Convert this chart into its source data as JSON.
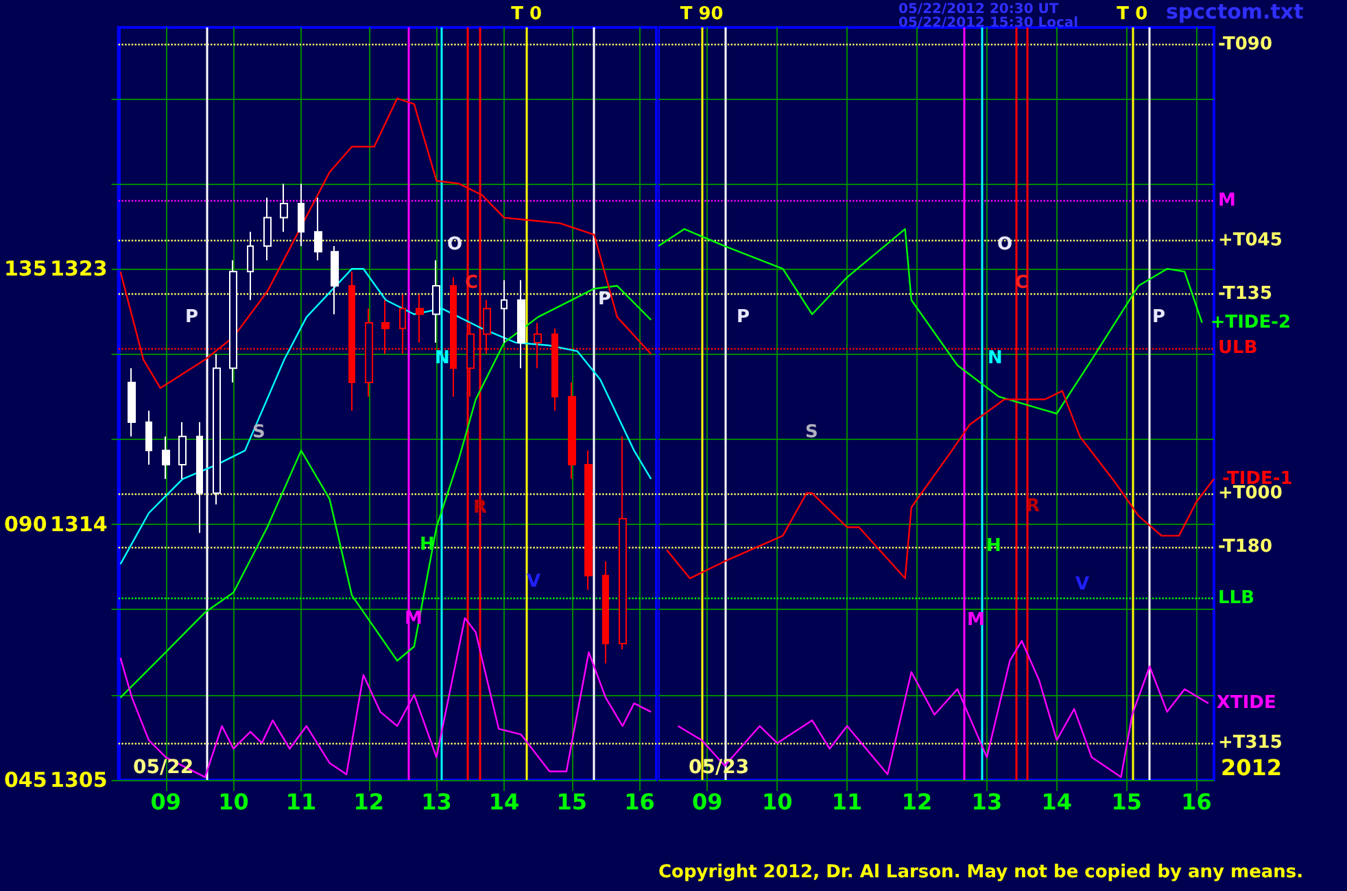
{
  "chart_data": [
    {
      "type": "candlestick",
      "xlim": [
        8.3,
        16.25
      ],
      "xticks": [
        {
          "value": 9,
          "label": "09"
        },
        {
          "value": 10,
          "label": "10"
        },
        {
          "value": 11,
          "label": "11"
        },
        {
          "value": 12,
          "label": "12"
        },
        {
          "value": 13,
          "label": "13"
        },
        {
          "value": 14,
          "label": "14"
        },
        {
          "value": 15,
          "label": "15"
        },
        {
          "value": 16,
          "label": "16"
        }
      ],
      "ylim": [
        1305,
        1331.5
      ],
      "yticks": [
        1305,
        {
          "value": 1308,
          "label": null
        },
        {
          "value": 1311,
          "label": null
        },
        1314,
        {
          "value": 1317,
          "label": null
        },
        {
          "value": 1320,
          "label": null
        },
        1323,
        {
          "value": 1326,
          "label": null
        },
        {
          "value": 1329,
          "label": null
        }
      ],
      "y2lim": [
        45,
        177.5
      ],
      "y2ticks": [
        {
          "value": 45,
          "label": "045"
        },
        {
          "value": 90,
          "label": "090"
        },
        {
          "value": 135,
          "label": "135"
        }
      ],
      "grid": true,
      "marker": "none",
      "series": [
        {
          "x": [
            8.5,
            8.75,
            9,
            9.25,
            9.5,
            9.75,
            10,
            10.25,
            10.5,
            10.75,
            11,
            11.25,
            11.5,
            11.75,
            12,
            12.25,
            12.5,
            12.75,
            13,
            13.25,
            13.5,
            13.75,
            14,
            14.25,
            14.5,
            14.75,
            15,
            15.25,
            15.5,
            15.75
          ],
          "ohlc": [
            [
              1319.0,
              1319.5,
              1317.1,
              1317.6
            ],
            [
              1317.6,
              1318.0,
              1316.1,
              1316.6
            ],
            [
              1316.6,
              1317.1,
              1315.6,
              1316.1
            ],
            [
              1316.1,
              1317.6,
              1315.6,
              1317.1
            ],
            [
              1317.1,
              1317.6,
              1313.7,
              1315.1
            ],
            [
              1315.1,
              1320.0,
              1314.7,
              1319.5
            ],
            [
              1319.5,
              1323.3,
              1319.0,
              1322.9
            ],
            [
              1322.9,
              1324.3,
              1321.9,
              1323.8
            ],
            [
              1323.8,
              1325.5,
              1323.3,
              1324.8
            ],
            [
              1324.8,
              1326.0,
              1324.3,
              1325.3
            ],
            [
              1325.3,
              1326.0,
              1323.8,
              1324.3
            ],
            [
              1324.3,
              1325.5,
              1323.3,
              1323.6
            ],
            [
              1323.6,
              1323.8,
              1321.4,
              1322.4
            ],
            [
              1322.4,
              1322.9,
              1318.0,
              1319.0
            ],
            [
              1319.0,
              1321.6,
              1318.5,
              1321.1
            ],
            [
              1321.1,
              1321.9,
              1320.0,
              1320.9
            ],
            [
              1320.9,
              1322.1,
              1320.0,
              1321.6
            ],
            [
              1321.6,
              1322.1,
              1320.4,
              1321.4
            ],
            [
              1321.4,
              1323.3,
              1320.4,
              1322.4
            ],
            [
              1322.4,
              1322.7,
              1318.5,
              1319.5
            ],
            [
              1319.5,
              1321.1,
              1318.5,
              1320.7
            ],
            [
              1320.7,
              1321.9,
              1320.0,
              1321.6
            ],
            [
              1321.6,
              1322.6,
              1320.4,
              1321.9
            ],
            [
              1321.9,
              1322.6,
              1319.5,
              1320.4
            ],
            [
              1320.4,
              1321.1,
              1319.5,
              1320.7
            ],
            [
              1320.7,
              1320.9,
              1318.0,
              1318.5
            ],
            [
              1318.5,
              1319.0,
              1315.6,
              1316.1
            ],
            [
              1316.1,
              1316.6,
              1311.7,
              1312.2
            ],
            [
              1312.2,
              1312.7,
              1309.1,
              1309.8
            ],
            [
              1309.8,
              1317.1,
              1309.6,
              1314.2
            ]
          ],
          "colors": [
            "#ffffff",
            "#ffffff",
            "#ffffff",
            "#ffffff",
            "#ffffff",
            "#ffffff",
            "#ffffff",
            "#ffffff",
            "#ffffff",
            "#ffffff",
            "#ffffff",
            "#ffffff",
            "#ffffff",
            "#ff0000",
            "#ff0000",
            "#ff0000",
            "#ff0000",
            "#ff0000",
            "#ffffff",
            "#ff0000",
            "#ff0000",
            "#ff0000",
            "#ffffff",
            "#ffffff",
            "#ff0000",
            "#ff0000",
            "#ff0000",
            "#ff0000",
            "#ff0000",
            "#ff0000"
          ]
        },
        {
          "type": "line",
          "color": "#00ffff",
          "x": [
            8.33,
            8.75,
            9.25,
            9.75,
            10.17,
            10.75,
            11.08,
            11.75,
            11.92,
            12.25,
            12.67,
            13.08,
            13.67,
            14.17,
            14.67,
            15.08,
            15.42,
            15.92,
            16.17
          ],
          "values": [
            1312.6,
            1314.4,
            1315.6,
            1316.1,
            1316.6,
            1319.8,
            1321.3,
            1323.0,
            1323.0,
            1321.9,
            1321.4,
            1321.6,
            1320.9,
            1320.4,
            1320.3,
            1320.1,
            1319.1,
            1316.6,
            1315.6
          ]
        },
        {
          "type": "line",
          "color": "#00ff00",
          "x": [
            8.33,
            9,
            9.58,
            10,
            10.5,
            11,
            11.42,
            11.75,
            12.42,
            12.67,
            13,
            13.33,
            13.58,
            14,
            14.5,
            15.33,
            15.67,
            16.17
          ],
          "values": [
            1307.9,
            1309.5,
            1310.9,
            1311.6,
            1313.9,
            1316.6,
            1314.9,
            1311.5,
            1309.2,
            1309.7,
            1313.9,
            1316.3,
            1318.4,
            1320.4,
            1321.3,
            1322.3,
            1322.4,
            1321.2
          ]
        },
        {
          "type": "line",
          "color": "#ff0000",
          "x": [
            8.33,
            8.67,
            8.92,
            9.58,
            10,
            10.5,
            11.42,
            11.75,
            12.08,
            12.42,
            12.67,
            13,
            13.33,
            13.67,
            14,
            14.83,
            15.33,
            15.67,
            16.17
          ],
          "values": [
            1322.9,
            1319.8,
            1318.8,
            1319.8,
            1320.6,
            1322.2,
            1326.4,
            1327.3,
            1327.3,
            1329.0,
            1328.8,
            1326.1,
            1326.0,
            1325.6,
            1324.8,
            1324.6,
            1324.2,
            1321.3,
            1320.0
          ]
        },
        {
          "type": "line",
          "color": "#ff00ff",
          "x": [
            8.33,
            8.5,
            8.75,
            9,
            9.58,
            9.83,
            10,
            10.25,
            10.42,
            10.58,
            10.83,
            11.08,
            11.42,
            11.67,
            11.92,
            12.17,
            12.42,
            12.67,
            13,
            13.42,
            13.58,
            13.92,
            14.25,
            14.67,
            14.92,
            15.25,
            15.5,
            15.75,
            15.92,
            16.17
          ],
          "values": [
            1309.3,
            1307.9,
            1306.4,
            1305.8,
            1305.1,
            1306.9,
            1306.1,
            1306.7,
            1306.3,
            1307.1,
            1306.1,
            1306.9,
            1305.6,
            1305.2,
            1308.7,
            1307.4,
            1306.9,
            1308.0,
            1305.8,
            1310.7,
            1310.2,
            1306.8,
            1306.6,
            1305.3,
            1305.3,
            1309.5,
            1307.9,
            1306.9,
            1307.7,
            1307.4
          ]
        }
      ],
      "ref_lines": [
        {
          "axis": "y",
          "value": 1330.9,
          "color": "#ffff66",
          "line_style": "dotted"
        },
        {
          "axis": "y",
          "value": 1325.4,
          "color": "#ff00ff",
          "line_style": "dotted"
        },
        {
          "axis": "y",
          "value": 1324.0,
          "color": "#ffff66",
          "line_style": "dotted"
        },
        {
          "axis": "y",
          "value": 1322.1,
          "color": "#ffff66",
          "line_style": "dotted"
        },
        {
          "axis": "y",
          "value": 1320.2,
          "color": "#ff0000",
          "line_style": "dotted"
        },
        {
          "axis": "y",
          "value": 1315.1,
          "color": "#ffff66",
          "line_style": "dotted"
        },
        {
          "axis": "y",
          "value": 1313.2,
          "color": "#ffff66",
          "line_style": "dotted"
        },
        {
          "axis": "y",
          "value": 1311.4,
          "color": "#00ff00",
          "line_style": "dotted"
        },
        {
          "axis": "y",
          "value": 1306.3,
          "color": "#ffff66",
          "line_style": "dotted"
        },
        {
          "axis": "x",
          "value": 14.33,
          "label": "T 0",
          "color": "#ffff00",
          "line_style": "solid"
        },
        {
          "axis": "x",
          "value": 9.6,
          "color": "#ffffff",
          "line_style": "solid"
        },
        {
          "axis": "x",
          "value": 12.58,
          "color": "#ff00ff",
          "line_style": "solid"
        },
        {
          "axis": "x",
          "value": 13.08,
          "color": "#00ffff",
          "line_style": "solid"
        },
        {
          "axis": "x",
          "value": 13.45,
          "color": "#ff0000",
          "line_style": "solid"
        },
        {
          "axis": "x",
          "value": 13.63,
          "color": "#ff0000",
          "line_style": "solid"
        },
        {
          "axis": "x",
          "value": 15.33,
          "color": "#ffffff",
          "line_style": "solid"
        }
      ],
      "annotations": [
        "05/22",
        "P",
        "S",
        "O",
        "C",
        "N",
        "R",
        "H",
        "M",
        "V",
        "P"
      ]
    },
    {
      "type": "line",
      "xlim": [
        8.3,
        16.25
      ],
      "xticks": [
        {
          "value": 9,
          "label": "09"
        },
        {
          "value": 10,
          "label": "10"
        },
        {
          "value": 11,
          "label": "11"
        },
        {
          "value": 12,
          "label": "12"
        },
        {
          "value": 13,
          "label": "13"
        },
        {
          "value": 14,
          "label": "14"
        },
        {
          "value": 15,
          "label": "15"
        },
        {
          "value": 16,
          "label": "16"
        }
      ],
      "ylim": [
        1305,
        1331.5
      ],
      "yticks": [
        1305,
        {
          "value": 1308,
          "label": null
        },
        {
          "value": 1311,
          "label": null
        },
        1314,
        {
          "value": 1317,
          "label": null
        },
        {
          "value": 1320,
          "label": null
        },
        1323,
        {
          "value": 1326,
          "label": null
        },
        {
          "value": 1329,
          "label": null
        }
      ],
      "tick_labels": "x",
      "grid": true,
      "marker": "none",
      "series": [
        {
          "name": "+TIDE-2",
          "color": "#00ff00",
          "x": [
            8.3,
            8.67,
            9.25,
            10.08,
            10.5,
            11,
            11.83,
            11.92,
            12.58,
            13.17,
            14,
            14.5,
            15.17,
            15.58,
            15.83,
            16.08
          ],
          "values": [
            1323.8,
            1324.4,
            1323.8,
            1323.0,
            1321.4,
            1322.7,
            1324.4,
            1321.9,
            1319.6,
            1318.5,
            1317.9,
            1319.8,
            1322.4,
            1323.0,
            1322.9,
            1321.1
          ]
        },
        {
          "name": "-TIDE-1",
          "color": "#ff0000",
          "x": [
            8.42,
            8.75,
            9.25,
            10.08,
            10.42,
            10.5,
            11,
            11.17,
            11.83,
            11.92,
            12.5,
            12.75,
            13.25,
            13.83,
            14.08,
            14.33,
            14.83,
            15.17,
            15.5,
            15.75,
            16,
            16.25
          ],
          "values": [
            1313.1,
            1312.1,
            1312.7,
            1313.6,
            1315.1,
            1315.1,
            1313.9,
            1313.9,
            1312.1,
            1314.6,
            1316.6,
            1317.5,
            1318.4,
            1318.4,
            1318.7,
            1317.1,
            1315.5,
            1314.3,
            1313.6,
            1313.6,
            1314.8,
            1315.6
          ]
        },
        {
          "name": "XTIDE",
          "color": "#ff00ff",
          "x": [
            8.58,
            8.92,
            9.25,
            9.75,
            10,
            10.5,
            10.75,
            11,
            11.58,
            11.92,
            12.25,
            12.58,
            13,
            13.33,
            13.5,
            13.75,
            14,
            14.25,
            14.5,
            14.92,
            15.08,
            15.33,
            15.58,
            15.83,
            16.17
          ],
          "values": [
            1306.9,
            1306.4,
            1305.5,
            1306.9,
            1306.3,
            1307.1,
            1306.1,
            1306.9,
            1305.2,
            1308.8,
            1307.3,
            1308.2,
            1305.8,
            1309.2,
            1309.9,
            1308.5,
            1306.4,
            1307.5,
            1305.8,
            1305.1,
            1307.3,
            1309.0,
            1307.4,
            1308.2,
            1307.7
          ]
        }
      ],
      "ref_lines": [
        {
          "axis": "y",
          "value": 1330.9,
          "label": "-T090",
          "color": "#ffff66",
          "line_style": "dotted"
        },
        {
          "axis": "y",
          "value": 1325.4,
          "label": "M",
          "color": "#ff00ff",
          "line_style": "dotted"
        },
        {
          "axis": "y",
          "value": 1324.0,
          "label": "+T045",
          "color": "#ffff66",
          "line_style": "dotted"
        },
        {
          "axis": "y",
          "value": 1322.1,
          "label": "-T135",
          "color": "#ffff66",
          "line_style": "dotted"
        },
        {
          "axis": "y",
          "value": 1320.2,
          "label": "ULB",
          "color": "#ff0000",
          "line_style": "dotted"
        },
        {
          "axis": "y",
          "value": 1315.1,
          "label": "+T000",
          "color": "#ffff66",
          "line_style": "dotted"
        },
        {
          "axis": "y",
          "value": 1313.2,
          "label": "-T180",
          "color": "#ffff66",
          "line_style": "dotted"
        },
        {
          "axis": "y",
          "value": 1311.4,
          "label": "LLB",
          "color": "#00ff00",
          "line_style": "dotted"
        },
        {
          "axis": "y",
          "value": 1306.3,
          "label": "+T315",
          "color": "#ffff66",
          "line_style": "dotted"
        },
        {
          "axis": "x",
          "value": 8.92,
          "label": "T 90",
          "color": "#ffff00",
          "line_style": "solid"
        },
        {
          "axis": "x",
          "value": 15.08,
          "label": "T 0",
          "color": "#ffff00",
          "line_style": "solid"
        },
        {
          "axis": "x",
          "value": 9.25,
          "color": "#ffffff",
          "line_style": "solid"
        },
        {
          "axis": "x",
          "value": 12.67,
          "color": "#ff00ff",
          "line_style": "solid"
        },
        {
          "axis": "x",
          "value": 12.92,
          "color": "#00ffff",
          "line_style": "solid"
        },
        {
          "axis": "x",
          "value": 13.42,
          "color": "#ff0000",
          "line_style": "solid"
        },
        {
          "axis": "x",
          "value": 13.58,
          "color": "#ff0000",
          "line_style": "solid"
        },
        {
          "axis": "x",
          "value": 15.33,
          "color": "#ffffff",
          "line_style": "solid"
        }
      ],
      "annotations": [
        "05/22/2012 20:30 UT",
        "05/22/2012 15:30 Local",
        "spcctom.txt",
        "2012",
        "Copyright 2012, Dr. Al Larson. May not be copied by any means.",
        "05/23",
        "P",
        "S",
        "O",
        "C",
        "N",
        "R",
        "H",
        "M",
        "V",
        "P"
      ]
    }
  ]
}
